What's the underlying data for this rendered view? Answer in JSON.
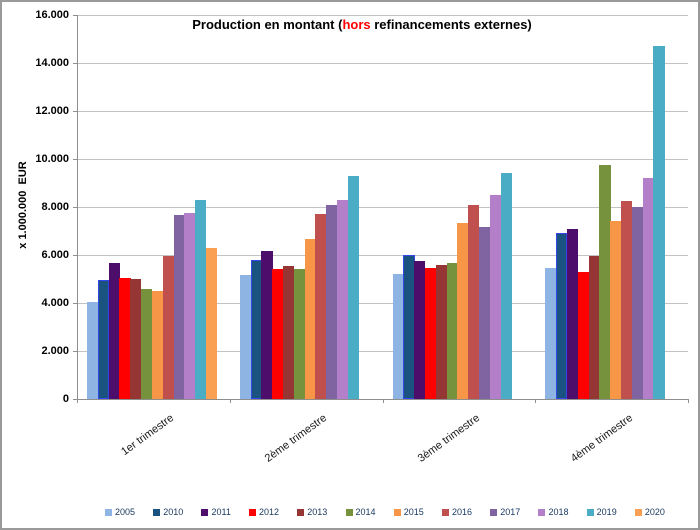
{
  "title": {
    "part1": "Production en montant (",
    "highlight": "hors",
    "part2": " refinancements externes)"
  },
  "colors": {
    "title_text": "#000000",
    "title_highlight": "#FF0000",
    "grid": "#C3C3C3",
    "axis": "#8E8E8E",
    "tick_label": "#000000",
    "legend_text": "#17375E",
    "background": "#FFFFFF",
    "frame": "#9A9A9A",
    "selection_outline": "#3346E8"
  },
  "y_axis": {
    "title": "x 1.000.000  EUR",
    "tick_labels": [
      "16.000",
      "14.000",
      "12.000",
      "10.000",
      "8.000",
      "6.000",
      "4.000",
      "2.000",
      "0"
    ]
  },
  "chart_data": {
    "type": "bar",
    "title": "Production en montant (hors refinancements externes)",
    "xlabel": "",
    "ylabel": "x 1.000.000 EUR",
    "ylim": [
      0,
      16000
    ],
    "ystep": 2000,
    "grid": true,
    "legend_position": "bottom",
    "categories": [
      "1er trimestre",
      "2ème trimestre",
      "3ème trimestre",
      "4ème trimestre"
    ],
    "series": [
      {
        "name": "2005",
        "color": "#8DB4E2",
        "values": [
          4050,
          5150,
          5200,
          5450
        ]
      },
      {
        "name": "2010",
        "color": "#1A5380",
        "border": "#3346E8",
        "values": [
          4950,
          5800,
          6000,
          6900
        ]
      },
      {
        "name": "2011",
        "color": "#4C0E6A",
        "values": [
          5650,
          6150,
          5750,
          7100
        ]
      },
      {
        "name": "2012",
        "color": "#FF0000",
        "values": [
          5050,
          5400,
          5450,
          5300
        ]
      },
      {
        "name": "2013",
        "color": "#963634",
        "values": [
          5000,
          5550,
          5600,
          5950
        ]
      },
      {
        "name": "2014",
        "color": "#76923C",
        "values": [
          4600,
          5400,
          5650,
          9750
        ]
      },
      {
        "name": "2015",
        "color": "#F79646",
        "values": [
          4500,
          6650,
          7350,
          7400
        ]
      },
      {
        "name": "2016",
        "color": "#C0504D",
        "values": [
          5950,
          7700,
          8100,
          8250
        ]
      },
      {
        "name": "2017",
        "color": "#8064A2",
        "values": [
          7650,
          8100,
          7150,
          8000
        ]
      },
      {
        "name": "2018",
        "color": "#B37FC9",
        "values": [
          7750,
          8300,
          8500,
          9200
        ]
      },
      {
        "name": "2019",
        "color": "#4BACC6",
        "values": [
          8300,
          9300,
          9400,
          14700
        ]
      },
      {
        "name": "2020",
        "color": "#F9A053",
        "values": [
          6300,
          null,
          null,
          null
        ]
      }
    ]
  }
}
